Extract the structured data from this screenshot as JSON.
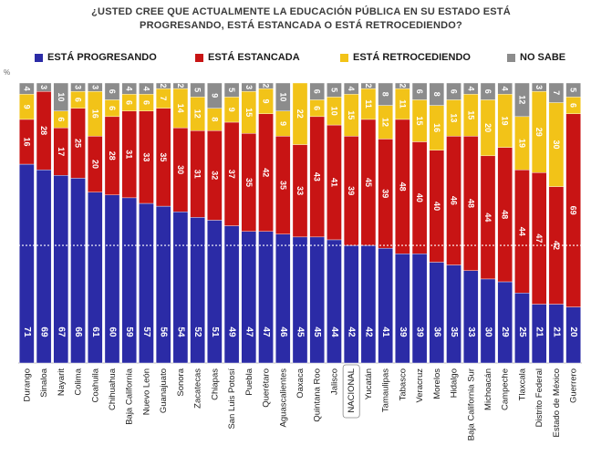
{
  "title": {
    "line1": "¿USTED CREE QUE ACTUALMENTE LA EDUCACIÓN PÚBLICA EN SU ESTADO ESTÁ",
    "line2": "PROGRESANDO, ESTÁ ESTANCADA O ESTÁ RETROCEDIENDO?"
  },
  "axis_unit": "%",
  "chart_data": {
    "type": "bar",
    "stacked": true,
    "orientation": "vertical",
    "ylim": [
      0,
      100
    ],
    "reference_line": 42,
    "legend_position": "top",
    "grid": false,
    "categories": [
      "Durango",
      "Sinaloa",
      "Nayarit",
      "Colima",
      "Coahuila",
      "Chihuahua",
      "Baja California",
      "Nuevo León",
      "Guanajuato",
      "Sonora",
      "Zacatecas",
      "Chiapas",
      "San Luis Potosí",
      "Puebla",
      "Querétaro",
      "Aguascalientes",
      "Oaxaca",
      "Quintana Roo",
      "Jalisco",
      "NACIONAL",
      "Yucatán",
      "Tamaulipas",
      "Tabasco",
      "Veracruz",
      "Morelos",
      "Hidalgo",
      "Baja California Sur",
      "Michoacán",
      "Campeche",
      "Tlaxcala",
      "Distrito Federal",
      "Estado de México",
      "Guerrero"
    ],
    "series": [
      {
        "name": "ESTÁ PROGRESANDO",
        "color": "#2b2ba6",
        "values": [
          71,
          69,
          67,
          66,
          61,
          60,
          59,
          57,
          56,
          54,
          52,
          51,
          49,
          47,
          47,
          46,
          45,
          45,
          44,
          42,
          42,
          41,
          39,
          39,
          36,
          35,
          33,
          30,
          29,
          25,
          21,
          21,
          20
        ]
      },
      {
        "name": "ESTÁ ESTANCADA",
        "color": "#c81414",
        "values": [
          16,
          28,
          17,
          25,
          20,
          28,
          31,
          33,
          35,
          30,
          31,
          32,
          37,
          35,
          42,
          35,
          33,
          43,
          41,
          39,
          45,
          39,
          48,
          40,
          40,
          46,
          48,
          44,
          48,
          44,
          47,
          42,
          69
        ]
      },
      {
        "name": "ESTÁ RETROCEDIENDO",
        "color": "#f2c318",
        "values": [
          9,
          0,
          6,
          6,
          16,
          6,
          6,
          6,
          7,
          14,
          12,
          8,
          9,
          15,
          9,
          9,
          22,
          6,
          10,
          15,
          11,
          12,
          11,
          15,
          16,
          13,
          15,
          20,
          19,
          19,
          29,
          30,
          6
        ]
      },
      {
        "name": "NO SABE",
        "color": "#8c8c8c",
        "values": [
          4,
          3,
          10,
          3,
          3,
          6,
          4,
          4,
          2,
          2,
          5,
          9,
          5,
          3,
          2,
          10,
          0,
          6,
          5,
          4,
          2,
          8,
          2,
          6,
          8,
          6,
          4,
          6,
          4,
          12,
          3,
          7,
          5
        ]
      }
    ]
  }
}
